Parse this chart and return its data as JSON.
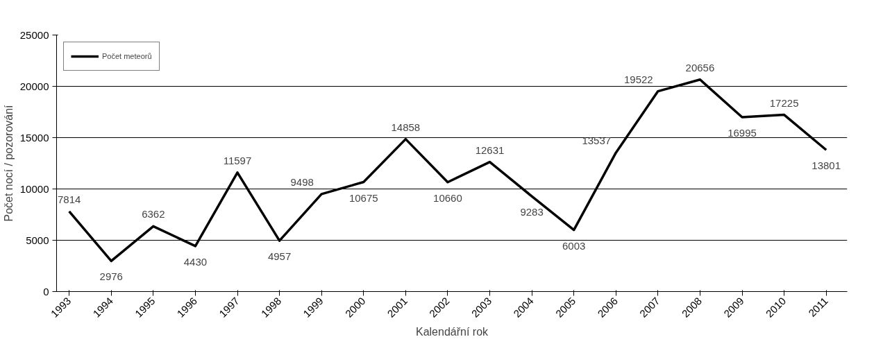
{
  "chart_data": {
    "type": "line",
    "xlabel": "Kalendářní rok",
    "ylabel": "Počet nocí / pozorování",
    "categories": [
      "1993",
      "1994",
      "1995",
      "1996",
      "1997",
      "1998",
      "1999",
      "2000",
      "2001",
      "2002",
      "2003",
      "2004",
      "2005",
      "2006",
      "2007",
      "2008",
      "2009",
      "2010",
      "2011"
    ],
    "series": [
      {
        "name": "Počet meteorů",
        "color": "#000000",
        "values": [
          7814,
          2976,
          6362,
          4430,
          11597,
          4957,
          9498,
          10675,
          14858,
          10660,
          12631,
          9283,
          6003,
          13537,
          19522,
          20656,
          16995,
          17225,
          13801
        ]
      }
    ],
    "ylim": [
      0,
      25000
    ],
    "yticks": [
      0,
      5000,
      10000,
      15000,
      20000,
      25000
    ],
    "grid": "y",
    "legend": "top left",
    "data_labels": true,
    "marker": "none",
    "line_style": "solid"
  }
}
